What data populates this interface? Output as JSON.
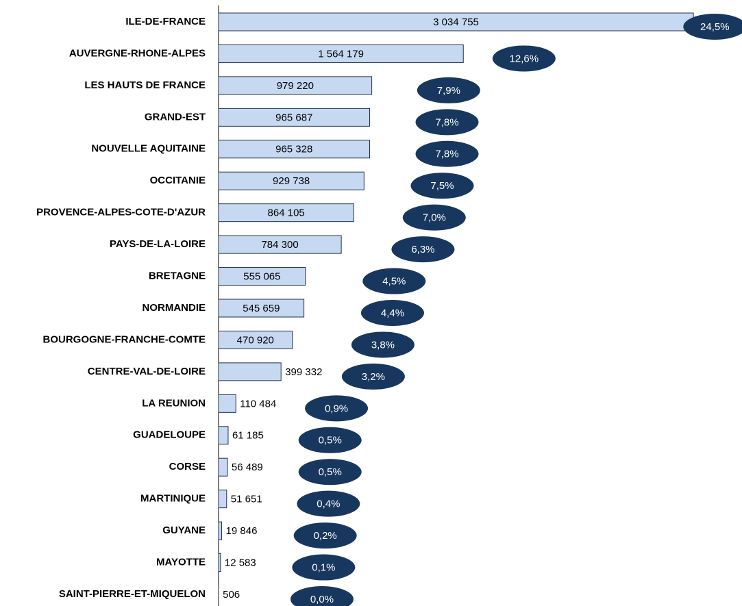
{
  "chart_data": {
    "type": "bar",
    "orientation": "horizontal",
    "categories": [
      "ILE-DE-FRANCE",
      "AUVERGNE-RHONE-ALPES",
      "LES HAUTS DE FRANCE",
      "GRAND-EST",
      "NOUVELLE AQUITAINE",
      "OCCITANIE",
      "PROVENCE-ALPES-COTE-D'AZUR",
      "PAYS-DE-LA-LOIRE",
      "BRETAGNE",
      "NORMANDIE",
      "BOURGOGNE-FRANCHE-COMTE",
      "CENTRE-VAL-DE-LOIRE",
      "LA REUNION",
      "GUADELOUPE",
      "CORSE",
      "MARTINIQUE",
      "GUYANE",
      "MAYOTTE",
      "SAINT-PIERRE-ET-MIQUELON"
    ],
    "values": [
      3034755,
      1564179,
      979220,
      965687,
      965328,
      929738,
      864105,
      784300,
      555065,
      545659,
      470920,
      399332,
      110484,
      61185,
      56489,
      51651,
      19846,
      12583,
      506
    ],
    "value_labels": [
      "3 034 755",
      "1 564 179",
      "979 220",
      "965 687",
      "965 328",
      "929 738",
      "864 105",
      "784 300",
      "555 065",
      "545 659",
      "470 920",
      "399 332",
      "110 484",
      "61 185",
      "56 489",
      "51 651",
      "19 846",
      "12 583",
      "506"
    ],
    "shares": [
      24.5,
      12.6,
      7.9,
      7.8,
      7.8,
      7.5,
      7.0,
      6.3,
      4.5,
      4.4,
      3.8,
      3.2,
      0.9,
      0.5,
      0.5,
      0.4,
      0.2,
      0.1,
      0.0
    ],
    "share_labels": [
      "24,5%",
      "12,6%",
      "7,9%",
      "7,8%",
      "7,8%",
      "7,5%",
      "7,0%",
      "6,3%",
      "4,5%",
      "4,4%",
      "3,8%",
      "3,2%",
      "0,9%",
      "0,5%",
      "0,5%",
      "0,4%",
      "0,2%",
      "0,1%",
      "0,0%"
    ],
    "color": "#c6d9f1",
    "share_color": "#17375e",
    "xlim": [
      0,
      3100000
    ]
  }
}
